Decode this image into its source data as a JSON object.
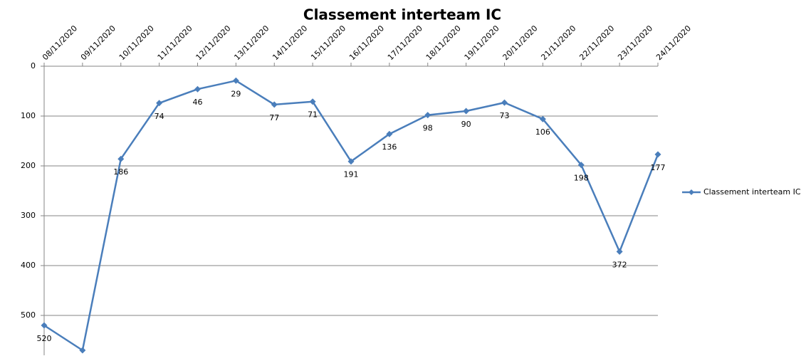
{
  "chart_data": {
    "type": "line",
    "title": "Classement interteam IC",
    "categories": [
      "08/11/2020",
      "09/11/2020",
      "10/11/2020",
      "11/11/2020",
      "12/11/2020",
      "13/11/2020",
      "14/11/2020",
      "15/11/2020",
      "16/11/2020",
      "17/11/2020",
      "18/11/2020",
      "19/11/2020",
      "20/11/2020",
      "21/11/2020",
      "22/11/2020",
      "23/11/2020",
      "24/11/2020"
    ],
    "series": [
      {
        "name": "Classement interteam IC",
        "color": "#4a7ebb",
        "values": [
          520,
          570,
          186,
          74,
          46,
          29,
          77,
          71,
          191,
          136,
          98,
          90,
          73,
          106,
          198,
          372,
          177
        ]
      }
    ],
    "ylim": [
      0,
      580
    ],
    "yticks": [
      0,
      100,
      200,
      300,
      400,
      500
    ],
    "y_inverted": true,
    "grid": true,
    "legend": "right",
    "data_labels": true
  }
}
